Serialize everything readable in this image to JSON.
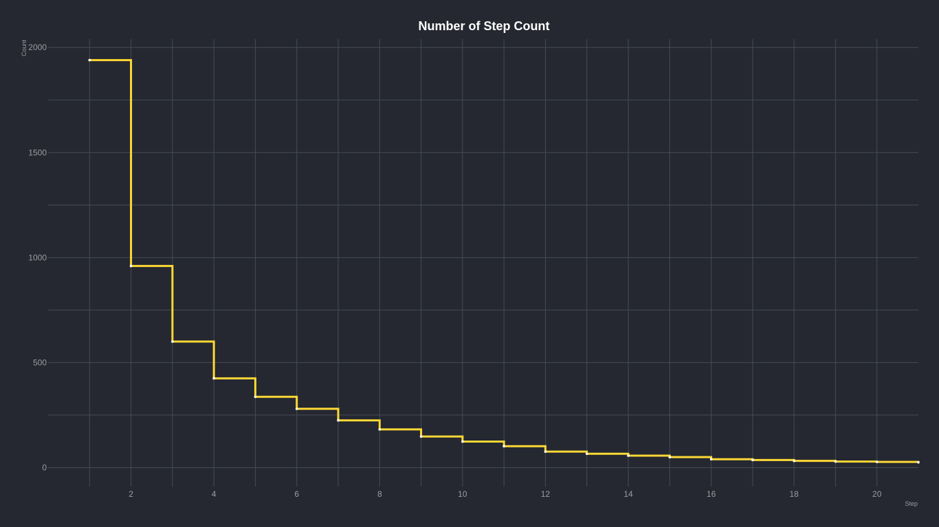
{
  "chart_data": {
    "type": "line",
    "line_shape": "step",
    "title": "Number of Step Count",
    "xlabel": "Step",
    "ylabel": "Count",
    "x": [
      1,
      2,
      3,
      4,
      5,
      6,
      7,
      8,
      9,
      10,
      11,
      12,
      13,
      14,
      15,
      16,
      17,
      18,
      19,
      20,
      21
    ],
    "series": [
      {
        "values": [
          1940,
          960,
          600,
          425,
          337,
          280,
          225,
          182,
          148,
          124,
          102,
          76,
          66,
          57,
          50,
          40,
          36,
          32,
          29,
          27,
          25
        ]
      }
    ],
    "xlim": [
      0,
      21
    ],
    "ylim": [
      -90,
      2040
    ],
    "xticks": [
      2,
      4,
      6,
      8,
      10,
      12,
      14,
      16,
      18,
      20
    ],
    "yticks": [
      0,
      500,
      1000,
      1500,
      2000
    ],
    "grid": true,
    "legend": "none",
    "colors": {
      "background": "#252830",
      "line": "#FDD835",
      "points": "#FFFFFF",
      "grid": "#474B53",
      "title": "#FFFFFF",
      "tick_label": "#9A9DA3",
      "axis_title": "#9A9DA3"
    }
  }
}
